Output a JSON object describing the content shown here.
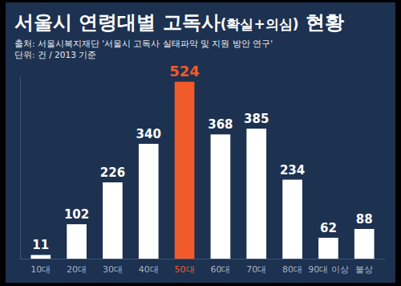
{
  "chart_data": {
    "type": "bar",
    "title": "서울시 연령대별 고독사(확실+의심) 현황",
    "annotations": [
      "출처: 서울시복지재단 '서울시 고독사 실태파악 및 지원 방안 연구'",
      "단위: 건 / 2013 기준"
    ],
    "categories": [
      "10대",
      "20대",
      "30대",
      "40대",
      "50대",
      "60대",
      "70대",
      "80대",
      "90대 이상",
      "불상"
    ],
    "values": [
      11,
      102,
      226,
      340,
      524,
      368,
      385,
      234,
      62,
      88
    ],
    "color": "#ffffff",
    "colors": [
      "#ffffff",
      "#ffffff",
      "#ffffff",
      "#ffffff",
      "#f15a29",
      "#ffffff",
      "#ffffff",
      "#ffffff",
      "#ffffff",
      "#ffffff"
    ],
    "ylim": [
      0,
      540
    ],
    "data_labels": true,
    "tick_labels": "x",
    "grid": false
  }
}
